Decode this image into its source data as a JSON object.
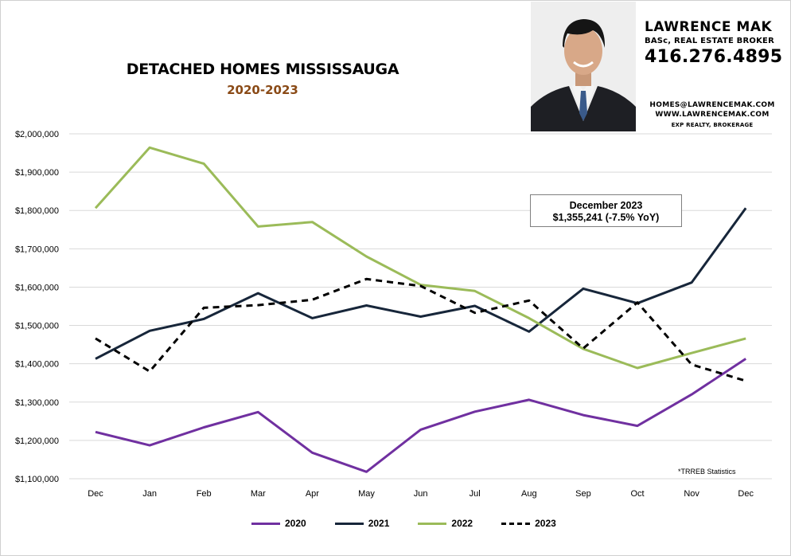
{
  "header": {
    "title": "DETACHED HOMES MISSISSAUGA",
    "subtitle": "2020-2023"
  },
  "agent": {
    "name": "LAWRENCE MAK",
    "credentials": "BASc, REAL ESTATE BROKER",
    "phone": "416.276.4895",
    "email": "HOMES@LAWRENCEMAK.COM",
    "website": "WWW.LAWRENCEMAK.COM",
    "brokerage": "EXP REALTY, BROKERAGE",
    "photo_icon": "agent-portrait"
  },
  "callout": {
    "line1": "December 2023",
    "line2": "$1,355,241  (-7.5%  YoY)"
  },
  "source_note": "*TRREB Statistics",
  "colors": {
    "2020": "#7030a0",
    "2021": "#17263a",
    "2022": "#9bbb59",
    "2023": "#000000",
    "grid": "#d9d9d9",
    "title_accent": "#8a4a16"
  },
  "chart_data": {
    "type": "line",
    "title": "DETACHED HOMES MISSISSAUGA",
    "subtitle": "2020-2023",
    "categories": [
      "Dec",
      "Jan",
      "Feb",
      "Mar",
      "Apr",
      "May",
      "Jun",
      "Jul",
      "Aug",
      "Sep",
      "Oct",
      "Nov",
      "Dec"
    ],
    "ylim": [
      1100000,
      2000000
    ],
    "yticks": [
      {
        "value": 1100000,
        "label": "$1,100,000"
      },
      {
        "value": 1200000,
        "label": "$1,200,000"
      },
      {
        "value": 1300000,
        "label": "$1,300,000"
      },
      {
        "value": 1400000,
        "label": "$1,400,000"
      },
      {
        "value": 1500000,
        "label": "$1,500,000"
      },
      {
        "value": 1600000,
        "label": "$1,600,000"
      },
      {
        "value": 1700000,
        "label": "$1,700,000"
      },
      {
        "value": 1800000,
        "label": "$1,800,000"
      },
      {
        "value": 1900000,
        "label": "$1,900,000"
      },
      {
        "value": 2000000,
        "label": "$2,000,000"
      }
    ],
    "grid": true,
    "legend_position": "bottom",
    "series": [
      {
        "name": "2020",
        "color": "#7030a0",
        "dash": "solid",
        "values": [
          1222000,
          1187000,
          1234000,
          1274000,
          1168000,
          1118000,
          1228000,
          1275000,
          1306000,
          1266000,
          1238000,
          1320000,
          1413000
        ]
      },
      {
        "name": "2021",
        "color": "#17263a",
        "dash": "solid",
        "values": [
          1413000,
          1486000,
          1517000,
          1584000,
          1519000,
          1552000,
          1523000,
          1551000,
          1484000,
          1596000,
          1558000,
          1612000,
          1806000
        ]
      },
      {
        "name": "2022",
        "color": "#9bbb59",
        "dash": "solid",
        "values": [
          1806000,
          1964000,
          1922000,
          1758000,
          1770000,
          1680000,
          1606000,
          1590000,
          1519000,
          1439000,
          1389000,
          1428000,
          1466000
        ]
      },
      {
        "name": "2023",
        "color": "#000000",
        "dash": "dashed",
        "values": [
          1466000,
          1380000,
          1546000,
          1553000,
          1567000,
          1621000,
          1603000,
          1533000,
          1565000,
          1440000,
          1560000,
          1398000,
          1355241
        ]
      }
    ]
  }
}
